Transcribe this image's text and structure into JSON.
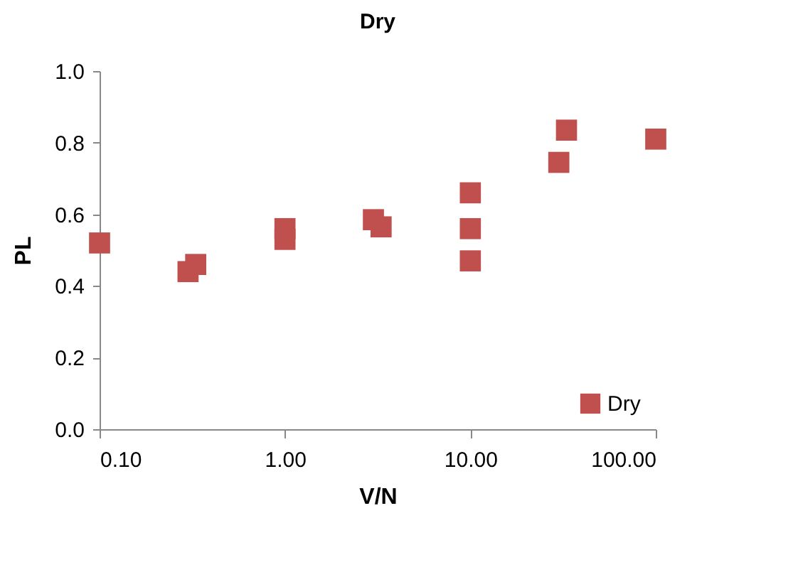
{
  "chart_data": {
    "type": "scatter",
    "title": "Dry",
    "xlabel": "V/N",
    "ylabel": "PL",
    "log": "x",
    "grid": false,
    "legend": "bottom right",
    "marker": "square",
    "xlim": [
      0.1,
      100
    ],
    "xticks": [
      {
        "value": 0.1,
        "label": "0.10"
      },
      {
        "value": 1,
        "label": "1.00"
      },
      {
        "value": 10,
        "label": "10.00"
      },
      {
        "value": 100,
        "label": "100.00"
      }
    ],
    "ylim": [
      0,
      1
    ],
    "yticks": [
      {
        "value": 0,
        "label": "0.0"
      },
      {
        "value": 0.2,
        "label": "0.2"
      },
      {
        "value": 0.4,
        "label": "0.4"
      },
      {
        "value": 0.6,
        "label": "0.6"
      },
      {
        "value": 0.8,
        "label": "0.8"
      },
      {
        "value": 1,
        "label": "1.0"
      }
    ],
    "series": [
      {
        "name": "Dry",
        "color": "#c0504d",
        "x": [
          0.1,
          0.3,
          0.33,
          1,
          1,
          3,
          3.3,
          10,
          10,
          10,
          30,
          33,
          100
        ],
        "values": [
          0.52,
          0.44,
          0.46,
          0.53,
          0.56,
          0.585,
          0.565,
          0.66,
          0.56,
          0.47,
          0.745,
          0.835,
          0.81
        ]
      }
    ]
  }
}
